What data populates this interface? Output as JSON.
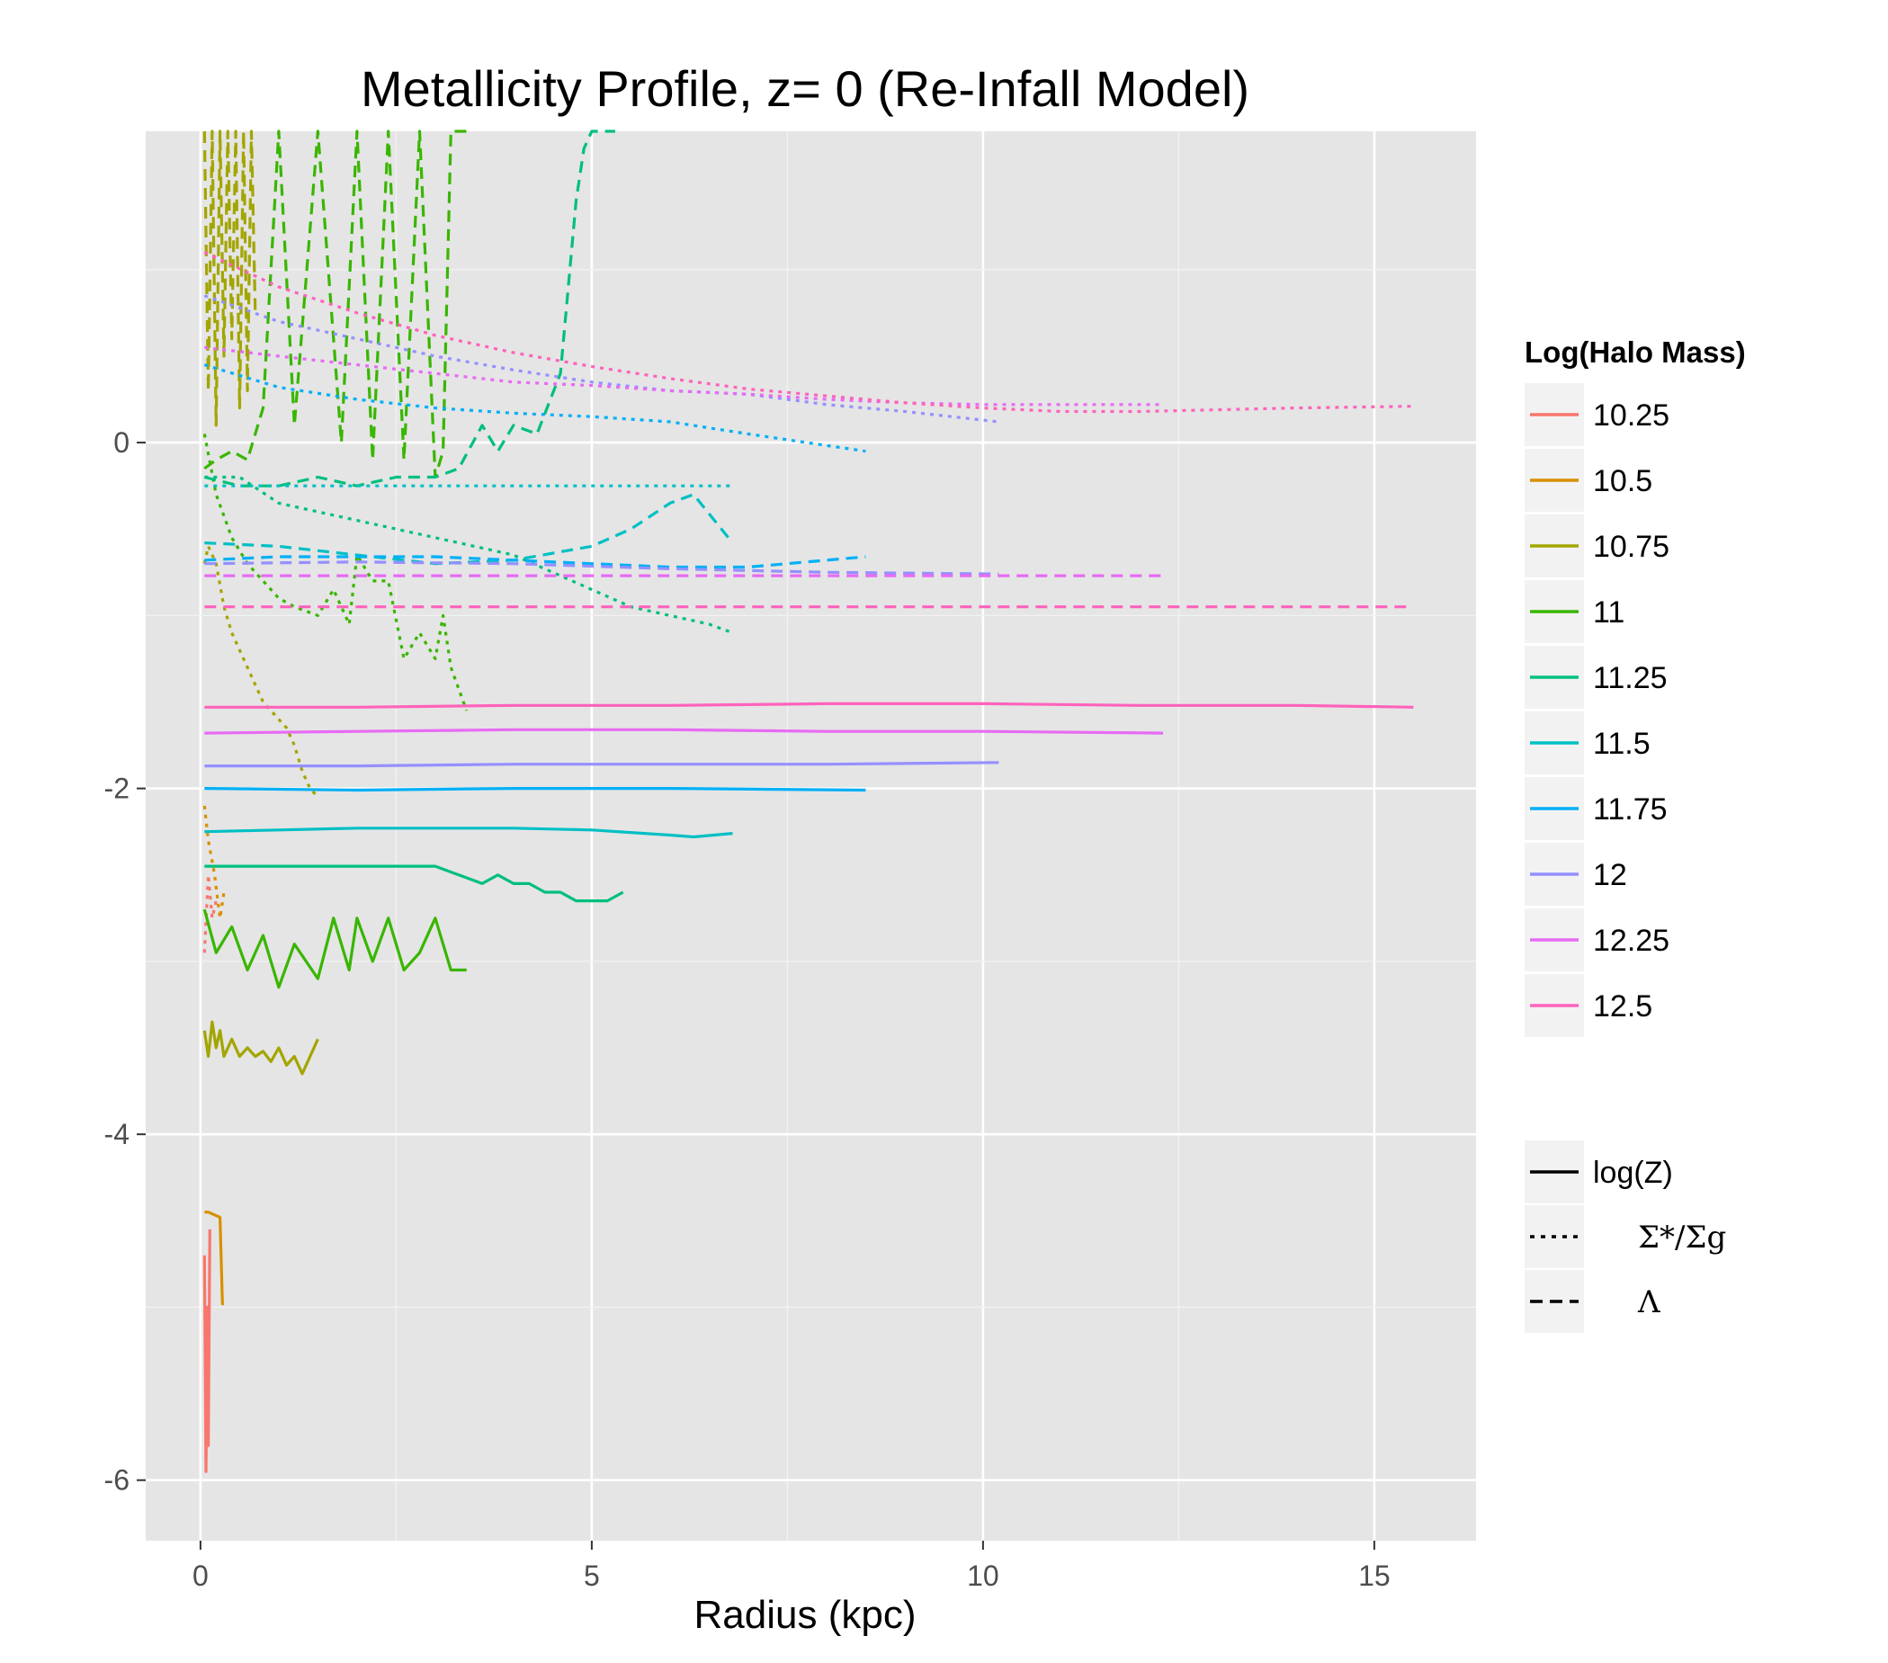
{
  "chart_data": {
    "type": "line",
    "title": "Metallicity Profile, z= 0 (Re-Infall Model)",
    "xlabel": "Radius (kpc)",
    "ylabel": "",
    "xlim": [
      -0.7,
      16.3
    ],
    "ylim": [
      -6.35,
      1.8
    ],
    "x_ticks": [
      0,
      5,
      10,
      15
    ],
    "y_ticks": [
      0,
      -2,
      -4,
      -6
    ],
    "x_tick_labels": [
      "0",
      "5",
      "10",
      "15"
    ],
    "y_tick_labels": [
      "0",
      "-2",
      "-4",
      "-6"
    ],
    "grid": true,
    "legend_color_title": "Log(Halo Mass)",
    "legend_placement": "right",
    "colors": {
      "10.25": "#F8766D",
      "10.5": "#D89000",
      "10.75": "#A3A500",
      "11": "#39B600",
      "11.25": "#00BF7D",
      "11.5": "#00BFC4",
      "11.75": "#00B0F6",
      "12": "#9590FF",
      "12.25": "#E76BF3",
      "12.5": "#FF62BC"
    },
    "mass_legend": [
      "10.25",
      "10.5",
      "10.75",
      "11",
      "11.25",
      "11.5",
      "11.75",
      "12",
      "12.25",
      "12.5"
    ],
    "linetype_legend": [
      {
        "key": "solid",
        "label": "log(Z)"
      },
      {
        "key": "dotted",
        "label": "Σ*/Σg"
      },
      {
        "key": "dashed",
        "label": "Λ"
      }
    ],
    "series": [
      {
        "mass": "10.25",
        "kind": "solid",
        "x": [
          0.05,
          0.07,
          0.09,
          0.1,
          0.12
        ],
        "y": [
          -4.7,
          -5.95,
          -5.0,
          -5.8,
          -4.55
        ]
      },
      {
        "mass": "10.25",
        "kind": "dotted",
        "x": [
          0.05,
          0.1,
          0.15,
          0.2
        ],
        "y": [
          -2.95,
          -2.5,
          -2.75,
          -2.65
        ]
      },
      {
        "mass": "10.5",
        "kind": "solid",
        "x": [
          0.05,
          0.1,
          0.25,
          0.28,
          0.3
        ],
        "y": [
          -4.45,
          -4.45,
          -4.48,
          -4.98,
          -4.98
        ]
      },
      {
        "mass": "10.5",
        "kind": "dotted",
        "x": [
          0.05,
          0.1,
          0.18,
          0.25,
          0.3
        ],
        "y": [
          -2.1,
          -2.3,
          -2.5,
          -2.75,
          -2.6
        ]
      },
      {
        "mass": "10.75",
        "kind": "solid",
        "x": [
          0.05,
          0.1,
          0.15,
          0.2,
          0.25,
          0.3,
          0.4,
          0.5,
          0.6,
          0.7,
          0.8,
          0.9,
          1.0,
          1.1,
          1.2,
          1.3,
          1.4,
          1.5
        ],
        "y": [
          -3.4,
          -3.55,
          -3.35,
          -3.5,
          -3.4,
          -3.55,
          -3.45,
          -3.55,
          -3.5,
          -3.55,
          -3.52,
          -3.58,
          -3.5,
          -3.6,
          -3.55,
          -3.65,
          -3.55,
          -3.45
        ]
      },
      {
        "mass": "10.75",
        "kind": "dotted",
        "x": [
          0.05,
          0.1,
          0.2,
          0.3,
          0.4,
          0.5,
          0.6,
          0.7,
          0.8,
          0.9,
          1.0,
          1.1,
          1.2,
          1.3,
          1.4,
          1.5
        ],
        "y": [
          -0.7,
          -0.6,
          -0.7,
          -0.95,
          -1.1,
          -1.2,
          -1.3,
          -1.4,
          -1.5,
          -1.55,
          -1.6,
          -1.65,
          -1.75,
          -1.9,
          -2.0,
          -2.05
        ]
      },
      {
        "mass": "10.75",
        "kind": "dashed",
        "x": [
          0.05,
          0.1,
          0.15,
          0.2,
          0.25,
          0.3,
          0.35,
          0.4,
          0.45,
          0.5,
          0.55,
          0.6,
          0.65,
          0.7
        ],
        "y": [
          1.8,
          0.3,
          1.8,
          0.1,
          1.8,
          0.5,
          1.8,
          0.6,
          1.8,
          0.2,
          1.8,
          0.3,
          1.8,
          0.75
        ]
      },
      {
        "mass": "11",
        "kind": "solid",
        "x": [
          0.05,
          0.2,
          0.4,
          0.6,
          0.8,
          1.0,
          1.2,
          1.5,
          1.7,
          1.9,
          2.0,
          2.2,
          2.4,
          2.6,
          2.8,
          3.0,
          3.1,
          3.2,
          3.4
        ],
        "y": [
          -2.7,
          -2.95,
          -2.8,
          -3.05,
          -2.85,
          -3.15,
          -2.9,
          -3.1,
          -2.75,
          -3.05,
          -2.75,
          -3.0,
          -2.75,
          -3.05,
          -2.95,
          -2.75,
          -2.9,
          -3.05,
          -3.05
        ]
      },
      {
        "mass": "11",
        "kind": "dotted",
        "x": [
          0.05,
          0.2,
          0.4,
          0.6,
          0.8,
          1.0,
          1.2,
          1.5,
          1.7,
          1.9,
          2.0,
          2.2,
          2.4,
          2.6,
          2.8,
          3.0,
          3.1,
          3.2,
          3.4
        ],
        "y": [
          0.05,
          -0.3,
          -0.55,
          -0.7,
          -0.8,
          -0.9,
          -0.95,
          -1.0,
          -0.85,
          -1.05,
          -0.65,
          -0.8,
          -0.8,
          -1.25,
          -1.1,
          -1.25,
          -1.0,
          -1.3,
          -1.55
        ]
      },
      {
        "mass": "11",
        "kind": "dashed",
        "x": [
          0.05,
          0.2,
          0.4,
          0.6,
          0.8,
          1.0,
          1.2,
          1.5,
          1.8,
          2.0,
          2.2,
          2.4,
          2.6,
          2.8,
          3.0,
          3.1,
          3.2,
          3.4
        ],
        "y": [
          -0.15,
          -0.1,
          -0.05,
          -0.1,
          0.2,
          1.8,
          0.1,
          1.8,
          0.0,
          1.8,
          -0.1,
          1.8,
          -0.1,
          1.8,
          -0.2,
          -0.05,
          1.8,
          1.8
        ]
      },
      {
        "mass": "11.25",
        "kind": "solid",
        "x": [
          0.05,
          0.5,
          1.0,
          1.5,
          2.0,
          2.5,
          3.0,
          3.3,
          3.6,
          3.8,
          4.0,
          4.2,
          4.4,
          4.6,
          4.8,
          5.0,
          5.2,
          5.4
        ],
        "y": [
          -2.45,
          -2.45,
          -2.45,
          -2.45,
          -2.45,
          -2.45,
          -2.45,
          -2.5,
          -2.55,
          -2.5,
          -2.55,
          -2.55,
          -2.6,
          -2.6,
          -2.65,
          -2.65,
          -2.65,
          -2.6
        ]
      },
      {
        "mass": "11.25",
        "kind": "dotted",
        "x": [
          0.05,
          0.5,
          1.0,
          1.5,
          2.0,
          2.5,
          3.0,
          3.5,
          4.0,
          4.5,
          5.0,
          5.5,
          6.0,
          6.5,
          6.8
        ],
        "y": [
          -0.2,
          -0.2,
          -0.35,
          -0.4,
          -0.45,
          -0.5,
          -0.55,
          -0.6,
          -0.65,
          -0.75,
          -0.85,
          -0.95,
          -1.0,
          -1.05,
          -1.1
        ]
      },
      {
        "mass": "11.25",
        "kind": "dashed",
        "x": [
          0.05,
          0.5,
          1.0,
          1.5,
          2.0,
          2.5,
          3.0,
          3.3,
          3.6,
          3.8,
          4.0,
          4.3,
          4.6,
          4.8,
          4.9,
          5.0,
          5.3
        ],
        "y": [
          -0.2,
          -0.25,
          -0.25,
          -0.2,
          -0.25,
          -0.2,
          -0.2,
          -0.15,
          0.1,
          -0.05,
          0.1,
          0.05,
          0.4,
          1.4,
          1.7,
          1.8,
          1.8
        ]
      },
      {
        "mass": "11.5",
        "kind": "solid",
        "x": [
          0.05,
          1.0,
          2.0,
          3.0,
          4.0,
          5.0,
          6.0,
          6.3,
          6.8
        ],
        "y": [
          -2.25,
          -2.24,
          -2.23,
          -2.23,
          -2.23,
          -2.24,
          -2.27,
          -2.28,
          -2.26
        ]
      },
      {
        "mass": "11.5",
        "kind": "dotted",
        "x": [
          0.05,
          1.0,
          2.0,
          3.0,
          4.0,
          5.0,
          5.5,
          6.0,
          6.8
        ],
        "y": [
          -0.25,
          -0.25,
          -0.25,
          -0.25,
          -0.25,
          -0.25,
          -0.25,
          -0.25,
          -0.25
        ]
      },
      {
        "mass": "11.5",
        "kind": "dashed",
        "x": [
          0.05,
          1.0,
          2.0,
          3.0,
          4.0,
          5.0,
          5.5,
          6.0,
          6.3,
          6.8
        ],
        "y": [
          -0.58,
          -0.6,
          -0.65,
          -0.7,
          -0.68,
          -0.6,
          -0.5,
          -0.35,
          -0.3,
          -0.58
        ]
      },
      {
        "mass": "11.75",
        "kind": "solid",
        "x": [
          0.05,
          2.0,
          4.0,
          6.0,
          8.5
        ],
        "y": [
          -2.0,
          -2.01,
          -2.0,
          -2.0,
          -2.01
        ]
      },
      {
        "mass": "11.75",
        "kind": "dotted",
        "x": [
          0.05,
          1.0,
          2.0,
          3.0,
          4.0,
          5.0,
          6.0,
          7.0,
          8.5
        ],
        "y": [
          0.45,
          0.32,
          0.25,
          0.2,
          0.17,
          0.15,
          0.12,
          0.05,
          -0.05
        ]
      },
      {
        "mass": "11.75",
        "kind": "dashed",
        "x": [
          0.05,
          1.0,
          2.0,
          3.0,
          4.0,
          5.0,
          6.0,
          7.0,
          8.5
        ],
        "y": [
          -0.68,
          -0.66,
          -0.66,
          -0.66,
          -0.68,
          -0.7,
          -0.72,
          -0.72,
          -0.66
        ]
      },
      {
        "mass": "12",
        "kind": "solid",
        "x": [
          0.05,
          2.0,
          4.0,
          6.0,
          8.0,
          10.2
        ],
        "y": [
          -1.87,
          -1.87,
          -1.86,
          -1.86,
          -1.86,
          -1.85
        ]
      },
      {
        "mass": "12",
        "kind": "dotted",
        "x": [
          0.05,
          1.0,
          2.0,
          3.0,
          4.0,
          5.0,
          6.0,
          7.0,
          8.0,
          9.0,
          10.2
        ],
        "y": [
          0.85,
          0.7,
          0.6,
          0.5,
          0.42,
          0.35,
          0.3,
          0.28,
          0.22,
          0.18,
          0.12
        ]
      },
      {
        "mass": "12",
        "kind": "dashed",
        "x": [
          0.05,
          2.0,
          4.0,
          6.0,
          8.0,
          10.2
        ],
        "y": [
          -0.7,
          -0.69,
          -0.7,
          -0.73,
          -0.75,
          -0.76
        ]
      },
      {
        "mass": "12.25",
        "kind": "solid",
        "x": [
          0.05,
          2.0,
          4.0,
          6.0,
          8.0,
          10.0,
          12.3
        ],
        "y": [
          -1.68,
          -1.67,
          -1.66,
          -1.66,
          -1.67,
          -1.67,
          -1.68
        ]
      },
      {
        "mass": "12.25",
        "kind": "dotted",
        "x": [
          0.05,
          1.0,
          2.0,
          3.0,
          4.0,
          5.0,
          6.0,
          7.0,
          8.0,
          9.0,
          10.0,
          11.0,
          12.3
        ],
        "y": [
          0.55,
          0.5,
          0.45,
          0.4,
          0.35,
          0.33,
          0.3,
          0.28,
          0.25,
          0.23,
          0.22,
          0.22,
          0.22
        ]
      },
      {
        "mass": "12.25",
        "kind": "dashed",
        "x": [
          0.05,
          2.0,
          4.0,
          6.0,
          8.0,
          10.0,
          12.3
        ],
        "y": [
          -0.77,
          -0.77,
          -0.77,
          -0.77,
          -0.77,
          -0.77,
          -0.77
        ]
      },
      {
        "mass": "12.5",
        "kind": "solid",
        "x": [
          0.05,
          2.0,
          4.0,
          6.0,
          8.0,
          10.0,
          12.0,
          14.0,
          15.5
        ],
        "y": [
          -1.53,
          -1.53,
          -1.52,
          -1.52,
          -1.51,
          -1.51,
          -1.52,
          -1.52,
          -1.53
        ]
      },
      {
        "mass": "12.5",
        "kind": "dotted",
        "x": [
          0.05,
          1.0,
          2.0,
          3.0,
          4.0,
          5.0,
          6.0,
          7.0,
          8.0,
          9.0,
          10.0,
          11.0,
          12.0,
          13.0,
          14.0,
          15.5
        ],
        "y": [
          1.1,
          0.9,
          0.75,
          0.62,
          0.52,
          0.44,
          0.37,
          0.31,
          0.27,
          0.23,
          0.2,
          0.18,
          0.18,
          0.19,
          0.2,
          0.21
        ]
      },
      {
        "mass": "12.5",
        "kind": "dashed",
        "x": [
          0.05,
          2.0,
          4.0,
          6.0,
          8.0,
          10.0,
          12.0,
          14.0,
          15.5
        ],
        "y": [
          -0.95,
          -0.95,
          -0.95,
          -0.95,
          -0.95,
          -0.95,
          -0.95,
          -0.95,
          -0.95
        ]
      }
    ]
  }
}
